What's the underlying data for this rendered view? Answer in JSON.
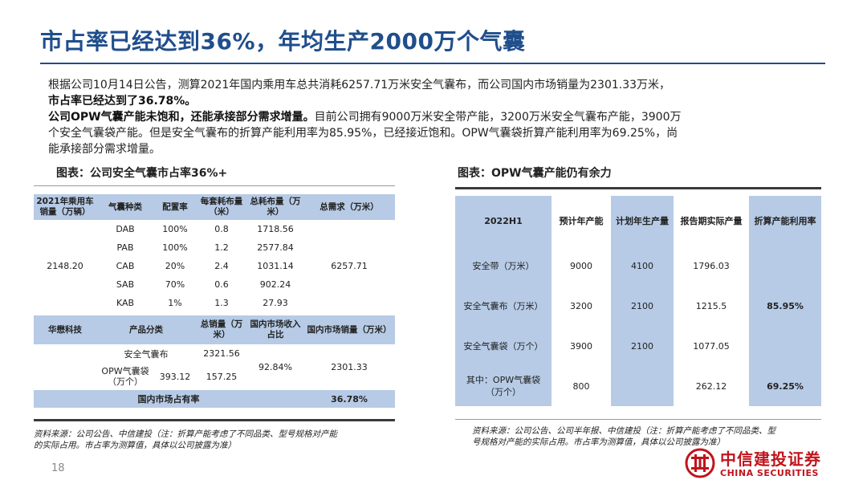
{
  "title": "市占率已经达到36%，年均生产2000万个气囊",
  "paragraph": {
    "line1": "根据公司10月14日公告，测算2021年国内乘用车总共消耗6257.71万米安全气囊布，而公司国内市场销量为2301.33万米，",
    "line2": "市占率已经达到了36.78%。",
    "line3_bold": "公司OPW气囊产能未饱和，还能承接部分需求增量。",
    "line3_rest": "目前公司拥有9000万米安全带产能，3200万米安全气囊布产能，3900万",
    "line4": "个安全气囊袋产能。但是安全气囊布的折算产能利用率为85.95%，已经接近饱和。OPW气囊袋折算产能利用率为69.25%，尚",
    "line5": "能承接部分需求增量。"
  },
  "left_table": {
    "caption": "图表：公司安全气囊市占率36%+",
    "headers": [
      "2021年乘用车销量（万辆）",
      "气囊种类",
      "配置率",
      "每套耗布量（米）",
      "总耗布量（万米）",
      "总需求（万米）"
    ],
    "sales": "2148.20",
    "total_demand": "6257.71",
    "rows": [
      {
        "type": "DAB",
        "rate": "100%",
        "per_set": "0.8",
        "total": "1718.56"
      },
      {
        "type": "PAB",
        "rate": "100%",
        "per_set": "1.2",
        "total": "2577.84"
      },
      {
        "type": "CAB",
        "rate": "20%",
        "per_set": "2.4",
        "total": "1031.14"
      },
      {
        "type": "SAB",
        "rate": "70%",
        "per_set": "0.6",
        "total": "902.24"
      },
      {
        "type": "KAB",
        "rate": "1%",
        "per_set": "1.3",
        "total": "27.93"
      }
    ],
    "sub_headers": [
      "华懋科技",
      "产品分类",
      "总销量（万米）",
      "国内市场收入占比",
      "国内市场销量（万米）"
    ],
    "fabric_label": "安全气囊布",
    "fabric_sales": "2321.56",
    "opw_label": "OPW气囊袋（万个）",
    "opw_count": "393.12",
    "opw_sales": "157.25",
    "domestic_ratio": "92.84%",
    "domestic_sales": "2301.33",
    "share_label": "国内市场占有率",
    "share_value": "36.78%",
    "source": {
      "line1": "资料来源：公司公告、中信建投（注：折算产能考虑了不同品类、型号规格对产能",
      "line2": "的实际占用。市占率为测算值，具体以公司披露为准）"
    }
  },
  "right_table": {
    "caption": "图表：OPW气囊产能仍有余力",
    "headers": [
      "2022H1",
      "预计年产能",
      "计划年生产量",
      "报告期实际产量",
      "折算产能利用率"
    ],
    "rows": [
      {
        "name": "安全带（万米）",
        "capacity": "9000",
        "plan": "4100",
        "actual": "1796.03",
        "util": ""
      },
      {
        "name": "安全气囊布（万米）",
        "capacity": "3200",
        "plan": "2100",
        "actual": "1215.5",
        "util": "85.95%"
      },
      {
        "name": "安全气囊袋（万个）",
        "capacity": "3900",
        "plan": "2100",
        "actual": "1077.05",
        "util": ""
      },
      {
        "name": "其中：OPW气囊袋（万个）",
        "capacity": "800",
        "plan": "",
        "actual": "262.12",
        "util": "69.25%"
      }
    ],
    "source": {
      "line1": "资料来源：公司公告、公司半年报、中信建投（注：折算产能考虑了不同品类、型",
      "line2": "号规格对产能的实际占用。市占率为测算值，具体以公司披露为准）"
    }
  },
  "page_number": "18",
  "logo": {
    "cn": "中信建投证券",
    "en": "CHINA SECURITIES"
  },
  "colors": {
    "title": "#1f4e8c",
    "header_fill": "#b7cbe6",
    "brand_red": "#c0141c"
  }
}
